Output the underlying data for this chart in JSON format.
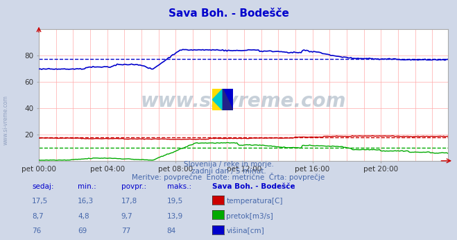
{
  "title": "Sava Boh. - Bodešče",
  "title_color": "#0000cc",
  "bg_color": "#d0d8e8",
  "plot_bg_color": "#ffffff",
  "xlim": [
    0,
    287
  ],
  "ylim": [
    0,
    100
  ],
  "yticks": [
    20,
    40,
    60,
    80
  ],
  "xtick_labels": [
    "pet 00:00",
    "pet 04:00",
    "pet 08:00",
    "pet 12:00",
    "pet 16:00",
    "pet 20:00"
  ],
  "xtick_positions": [
    0,
    48,
    96,
    144,
    192,
    240
  ],
  "watermark_text": "www.si-vreme.com",
  "left_label": "www.si-vreme.com",
  "subtitle1": "Slovenija / reke in morje.",
  "subtitle2": "zadnji dan / 5 minut.",
  "subtitle3": "Meritve: povprečne  Enote: metrične  Črta: povprečje",
  "subtitle_color": "#4466aa",
  "table_header": [
    "sedaj:",
    "min.:",
    "povpr.:",
    "maks.:",
    "Sava Boh. - Bodešče"
  ],
  "table_data": [
    [
      "17,5",
      "16,3",
      "17,8",
      "19,5",
      "temperatura[C]"
    ],
    [
      "8,7",
      "4,8",
      "9,7",
      "13,9",
      "pretok[m3/s]"
    ],
    [
      "76",
      "69",
      "77",
      "84",
      "višina[cm]"
    ]
  ],
  "series_colors": [
    "#cc0000",
    "#00aa00",
    "#0000cc"
  ],
  "avg_colors": [
    "#cc0000",
    "#00aa00",
    "#0000cc"
  ],
  "temp_avg": 17.8,
  "flow_avg": 9.7,
  "height_avg": 77,
  "grid_v_color": "#ffaaaa",
  "grid_h_color": "#ffaaaa"
}
